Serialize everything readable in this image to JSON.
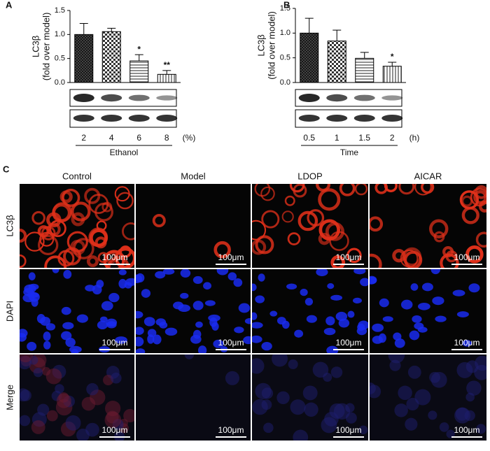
{
  "chart_data": [
    {
      "type": "bar",
      "panel_label": "A",
      "ylabel": [
        "LC3β",
        "(fold over model)"
      ],
      "categories": [
        "2",
        "4",
        "6",
        "8"
      ],
      "x_unit": "(%)",
      "xlabel": "Ethanol",
      "values": [
        1.0,
        1.06,
        0.45,
        0.17
      ],
      "errors": [
        0.23,
        0.07,
        0.13,
        0.08
      ],
      "value_annotations": [
        null,
        null,
        "*",
        "**"
      ],
      "ylim": [
        0,
        1.5
      ],
      "yticks": [
        {
          "value": 0,
          "label": "0.0"
        },
        0.5,
        {
          "value": 1,
          "label": "1.0"
        },
        1.5
      ]
    },
    {
      "type": "bar",
      "panel_label": "B",
      "ylabel": [
        "LC3β",
        "(fold over model)"
      ],
      "categories": [
        "0.5",
        "1",
        "1.5",
        "2"
      ],
      "x_unit": "(h)",
      "xlabel": "Time",
      "values": [
        1.0,
        0.84,
        0.49,
        0.33
      ],
      "errors": [
        0.3,
        0.22,
        0.12,
        0.08
      ],
      "value_annotations": [
        null,
        null,
        null,
        "*"
      ],
      "ylim": [
        0,
        1.5
      ],
      "yticks": [
        {
          "value": 0,
          "label": "0.0"
        },
        0.5,
        {
          "value": 1,
          "label": "1.0"
        },
        1.5
      ]
    }
  ],
  "panel_c": {
    "label": "C",
    "columns": [
      "Control",
      "Model",
      "LDOP",
      "AICAR"
    ],
    "rows": [
      "LC3β",
      "DAPI",
      "Merge"
    ],
    "scale_bar": "100μm"
  }
}
